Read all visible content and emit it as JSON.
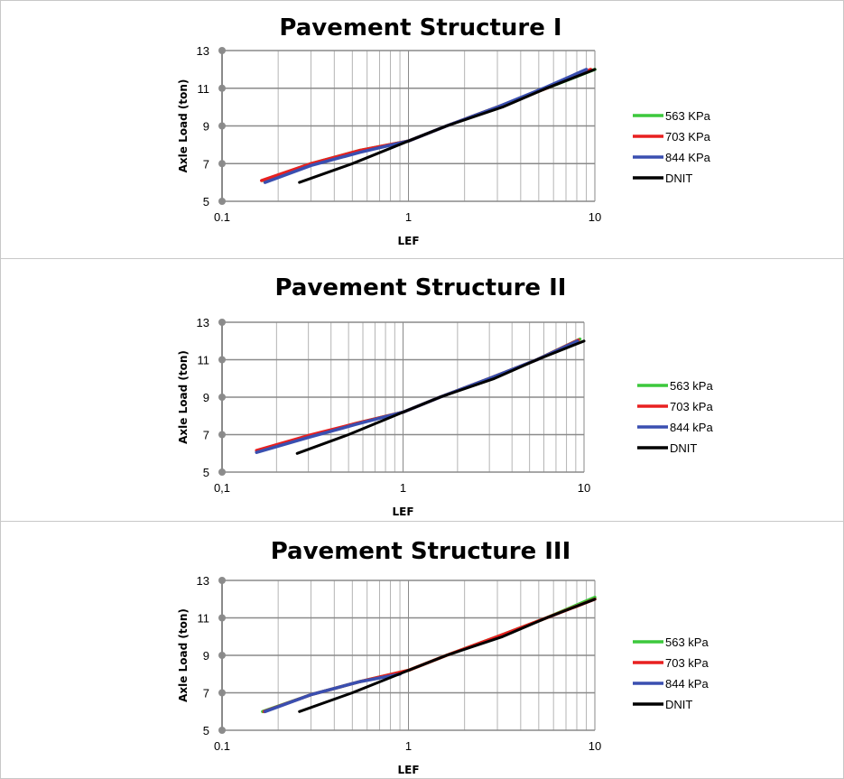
{
  "chart_data": [
    {
      "type": "line",
      "title": "Pavement Structure I",
      "xlabel": "LEF",
      "ylabel": "Axle Load (ton)",
      "x_scale": "log",
      "xlim": [
        0.1,
        10
      ],
      "ylim": [
        5,
        13
      ],
      "x_ticks": [
        "0.1",
        "1",
        "10"
      ],
      "y_ticks": [
        "5",
        "7",
        "9",
        "11",
        "13"
      ],
      "grid": true,
      "legend_position": "right",
      "series": [
        {
          "name": "563 KPa",
          "color": "#3cc83c",
          "points": [
            [
              0.165,
              6.1
            ],
            [
              0.3,
              7
            ],
            [
              0.55,
              7.7
            ],
            [
              1,
              8.2
            ],
            [
              1.6,
              9
            ],
            [
              3,
              10
            ],
            [
              5.5,
              11
            ],
            [
              10,
              12
            ]
          ]
        },
        {
          "name": "703 KPa",
          "color": "#e82020",
          "points": [
            [
              0.163,
              6.1
            ],
            [
              0.3,
              7
            ],
            [
              0.55,
              7.7
            ],
            [
              1,
              8.2
            ],
            [
              1.6,
              9
            ],
            [
              3,
              10
            ],
            [
              5.5,
              11
            ],
            [
              9.5,
              12
            ]
          ]
        },
        {
          "name": "844 KPa",
          "color": "#3a4fb0",
          "points": [
            [
              0.17,
              6.0
            ],
            [
              0.3,
              6.9
            ],
            [
              0.55,
              7.6
            ],
            [
              1,
              8.2
            ],
            [
              1.6,
              9
            ],
            [
              3,
              10
            ],
            [
              5.3,
              11
            ],
            [
              9,
              12
            ]
          ]
        },
        {
          "name": "DNIT",
          "color": "#000000",
          "points": [
            [
              0.26,
              6.0
            ],
            [
              0.5,
              7.0
            ],
            [
              1,
              8.2
            ],
            [
              1.6,
              9
            ],
            [
              3.2,
              10
            ],
            [
              5.5,
              11
            ],
            [
              10,
              12
            ]
          ]
        }
      ]
    },
    {
      "type": "line",
      "title": "Pavement Structure II",
      "xlabel": "LEF",
      "ylabel": "Axle Load (ton)",
      "x_scale": "log",
      "xlim": [
        0.1,
        10
      ],
      "ylim": [
        5,
        13
      ],
      "x_ticks": [
        "0,1",
        "1",
        "10"
      ],
      "y_ticks": [
        "5",
        "7",
        "9",
        "11",
        "13"
      ],
      "grid": true,
      "legend_position": "right",
      "series": [
        {
          "name": "563 kPa",
          "color": "#3cc83c",
          "points": [
            [
              0.16,
              6.1
            ],
            [
              0.3,
              6.9
            ],
            [
              0.55,
              7.6
            ],
            [
              1,
              8.2
            ],
            [
              1.6,
              9
            ],
            [
              3,
              10
            ],
            [
              5.5,
              11
            ],
            [
              9.5,
              12.1
            ]
          ]
        },
        {
          "name": "703 kPa",
          "color": "#e82020",
          "points": [
            [
              0.155,
              6.15
            ],
            [
              0.3,
              6.95
            ],
            [
              0.55,
              7.6
            ],
            [
              1,
              8.2
            ],
            [
              1.6,
              9
            ],
            [
              3,
              10
            ],
            [
              5.5,
              11
            ],
            [
              9.3,
              12.05
            ]
          ]
        },
        {
          "name": "844 kPa",
          "color": "#3a4fb0",
          "points": [
            [
              0.155,
              6.05
            ],
            [
              0.3,
              6.85
            ],
            [
              0.55,
              7.55
            ],
            [
              1,
              8.2
            ],
            [
              1.6,
              9
            ],
            [
              3,
              10
            ],
            [
              5.5,
              11
            ],
            [
              9.2,
              12
            ]
          ]
        },
        {
          "name": "DNIT",
          "color": "#000000",
          "points": [
            [
              0.26,
              6.0
            ],
            [
              0.5,
              7.0
            ],
            [
              1,
              8.2
            ],
            [
              1.6,
              9
            ],
            [
              3.2,
              10
            ],
            [
              5.5,
              11
            ],
            [
              10,
              12
            ]
          ]
        }
      ]
    },
    {
      "type": "line",
      "title": "Pavement Structure III",
      "xlabel": "LEF",
      "ylabel": "Axle Load (ton)",
      "x_scale": "log",
      "xlim": [
        0.1,
        10
      ],
      "ylim": [
        5,
        13
      ],
      "x_ticks": [
        "0.1",
        "1",
        "10"
      ],
      "y_ticks": [
        "5",
        "7",
        "9",
        "11",
        "13"
      ],
      "grid": true,
      "legend_position": "right",
      "series": [
        {
          "name": "563 kPa",
          "color": "#3cc83c",
          "points": [
            [
              0.165,
              6.0
            ],
            [
              0.3,
              6.9
            ],
            [
              0.55,
              7.6
            ],
            [
              1,
              8.2
            ],
            [
              1.6,
              9
            ],
            [
              3,
              10
            ],
            [
              5.5,
              11
            ],
            [
              10,
              12.1
            ]
          ]
        },
        {
          "name": "703 kPa",
          "color": "#e82020",
          "points": [
            [
              0.168,
              6.0
            ],
            [
              0.3,
              6.9
            ],
            [
              0.55,
              7.6
            ],
            [
              1,
              8.2
            ],
            [
              1.6,
              9
            ],
            [
              3,
              10
            ],
            [
              5.5,
              11
            ],
            [
              10,
              12
            ]
          ]
        },
        {
          "name": "844 kPa",
          "color": "#3a4fb0",
          "points": [
            [
              0.17,
              6.0
            ],
            [
              0.3,
              6.9
            ],
            [
              0.55,
              7.6
            ],
            [
              0.9,
              8.0
            ]
          ]
        },
        {
          "name": "DNIT",
          "color": "#000000",
          "points": [
            [
              0.26,
              6.0
            ],
            [
              0.5,
              7.0
            ],
            [
              1,
              8.2
            ],
            [
              1.6,
              9
            ],
            [
              3.2,
              10
            ],
            [
              5.5,
              11
            ],
            [
              10,
              12
            ]
          ]
        }
      ]
    }
  ]
}
